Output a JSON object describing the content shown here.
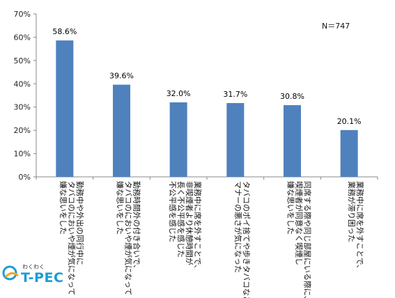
{
  "chart_data": {
    "type": "bar",
    "title": "",
    "xlabel": "",
    "ylabel": "",
    "ylim": [
      0,
      70
    ],
    "yticks": [
      "0%",
      "10%",
      "20%",
      "30%",
      "40%",
      "50%",
      "60%",
      "70%"
    ],
    "categories": [
      "勤務中や外出の同行中に\nタバコのにおいや煙が気になって\n嫌な思いをした",
      "勤務時間外の付き合いで、\nタバコのにおいや煙が気になって\n嫌な思いをした",
      "業務中に席を外すことで、\n非喫煙者より休憩時間が\n長く不公平感を感じた\n不公平感を感じた",
      "タバコのポイ捨てや歩きタバコなど\nマナーの悪さが気になった",
      "同席する際や同じ部屋にいる際に、\n喫煙者が同意なく喫煙し\n嫌な思いをした",
      "業務中に席を外すことで、\n業務が滞り困った"
    ],
    "values": [
      58.6,
      39.6,
      32.0,
      31.7,
      30.8,
      20.1
    ],
    "data_labels": [
      "58.6%",
      "39.6%",
      "32.0%",
      "31.7%",
      "30.8%",
      "20.1%"
    ],
    "bar_color": "#4f81bd",
    "grid": false,
    "annotation": "N＝747"
  },
  "logo": {
    "sub": "わくわく",
    "main": "T-PEC"
  }
}
